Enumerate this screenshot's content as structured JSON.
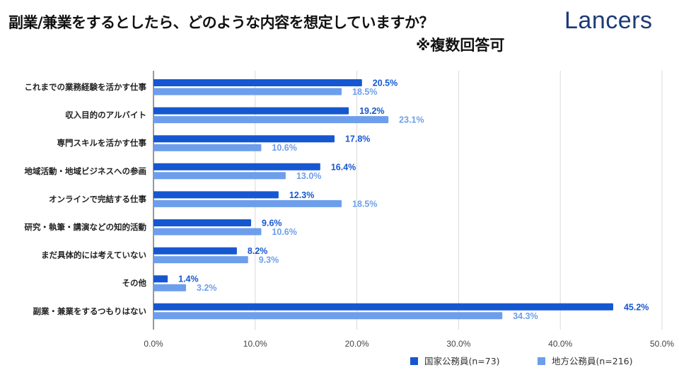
{
  "header": {
    "title": "副業/兼業をするとしたら、どのような内容を想定していますか？",
    "subtitle": "※複数回答可",
    "logo": "Lancers"
  },
  "chart_data": {
    "type": "bar",
    "orientation": "horizontal",
    "categories": [
      "これまでの業務経験を活かす仕事",
      "収入目的のアルバイト",
      "専門スキルを活かす仕事",
      "地域活動・地域ビジネスへの参画",
      "オンラインで完結する仕事",
      "研究・執筆・講演などの知的活動",
      "まだ具体的には考えていない",
      "その他",
      "副業・兼業をするつもりはない"
    ],
    "series": [
      {
        "name": "国家公務員(n=73)",
        "color": "#1557d0",
        "values": [
          20.5,
          19.2,
          17.8,
          16.4,
          12.3,
          9.6,
          8.2,
          1.4,
          45.2
        ]
      },
      {
        "name": "地方公務員(n=216)",
        "color": "#6d9eeb",
        "values": [
          18.5,
          23.1,
          10.6,
          13.0,
          18.5,
          10.6,
          9.3,
          3.2,
          34.3
        ]
      }
    ],
    "xlim": [
      0,
      50
    ],
    "xticks": [
      "0.0%",
      "10.0%",
      "20.0%",
      "30.0%",
      "40.0%",
      "50.0%"
    ],
    "grid": true,
    "legend": "bottom-right",
    "data_labels": true
  }
}
